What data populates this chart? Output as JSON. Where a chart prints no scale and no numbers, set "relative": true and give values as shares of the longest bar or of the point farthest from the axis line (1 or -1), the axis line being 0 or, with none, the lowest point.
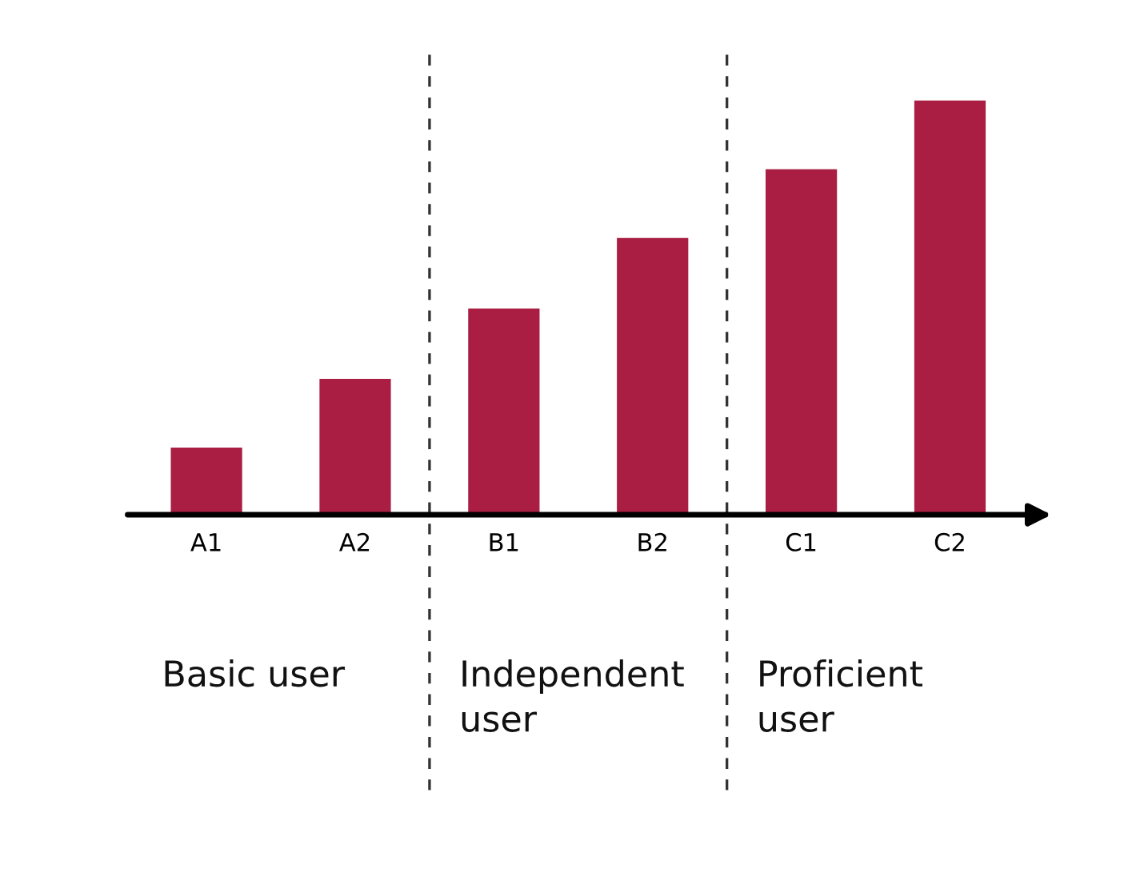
{
  "chart_data": {
    "type": "bar",
    "relative": true,
    "categories": [
      "A1",
      "A2",
      "B1",
      "B2",
      "C1",
      "C2"
    ],
    "values": [
      0.162,
      0.328,
      0.498,
      0.668,
      0.834,
      1
    ],
    "color": "#a91e42",
    "annotations": [
      "Basic user",
      "Independent\nuser",
      "Proficient\nuser"
    ],
    "grid": false,
    "legend": false
  }
}
